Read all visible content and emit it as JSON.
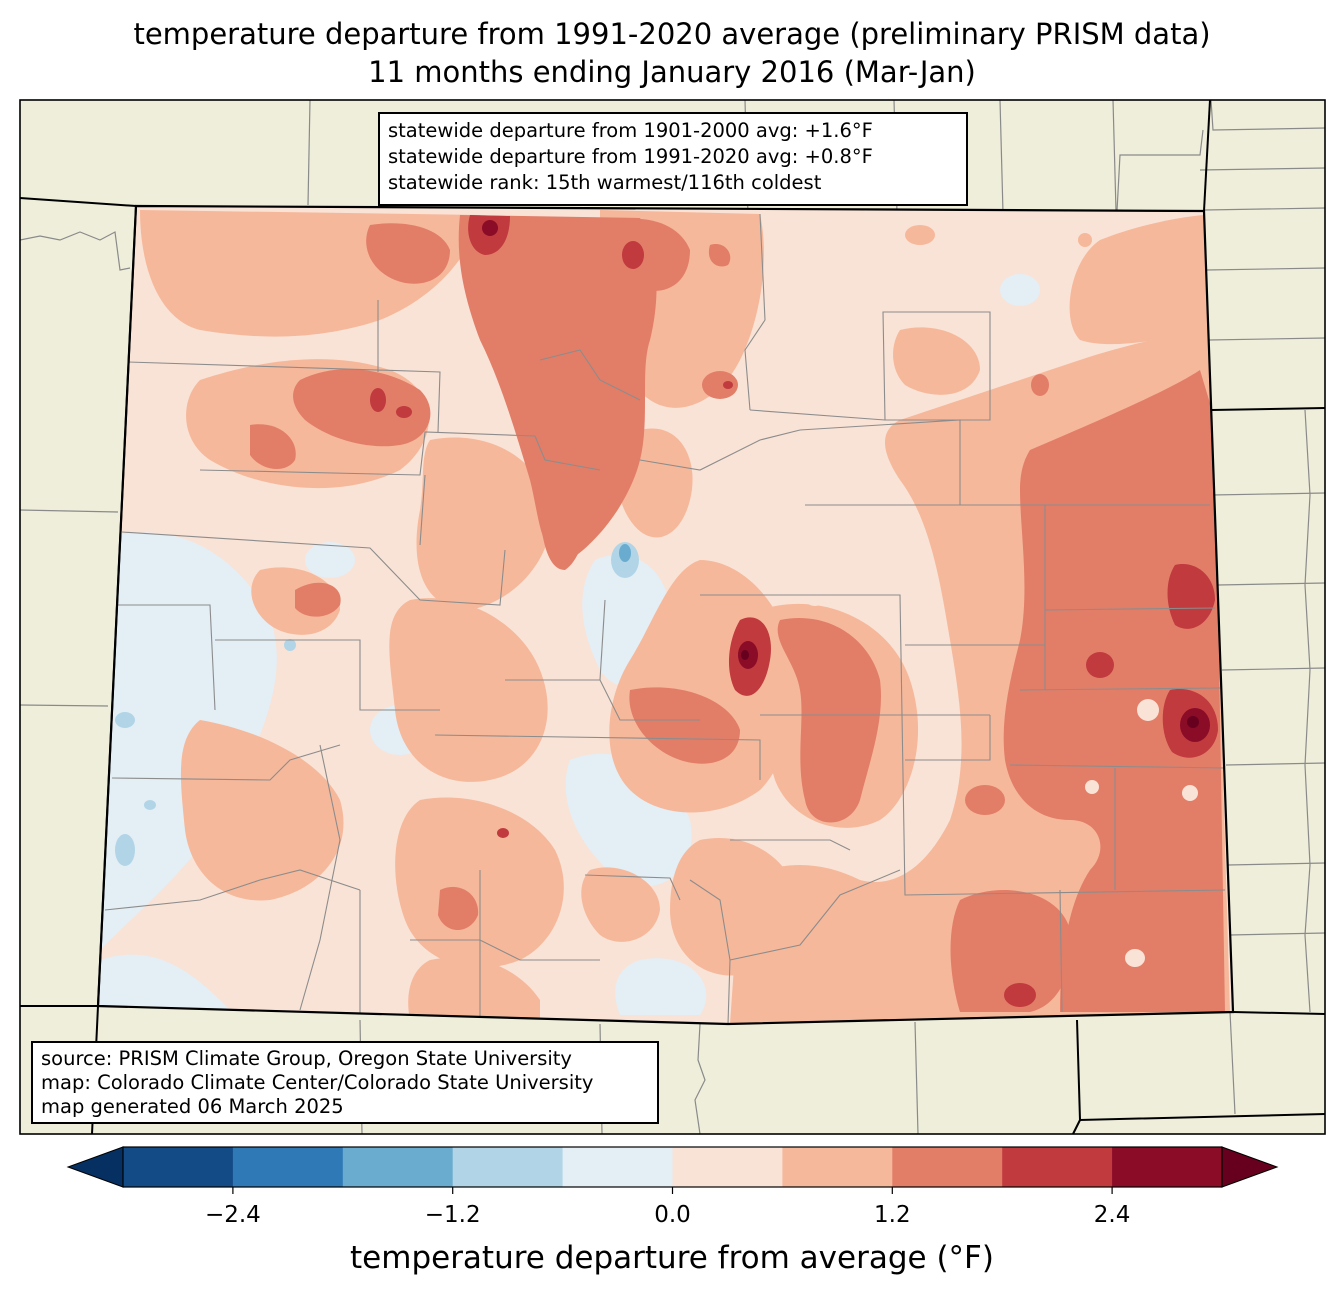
{
  "title": {
    "line1": "temperature departure from 1991-2020 average (preliminary PRISM data)",
    "line2": "11 months ending January 2016 (Mar-Jan)"
  },
  "stats": {
    "line1": "statewide departure from 1901-2000 avg: +1.6°F",
    "line2": "statewide departure from 1991-2020 avg: +0.8°F",
    "line3": "statewide rank: 15th warmest/116th coldest"
  },
  "source": {
    "line1": "source: PRISM Climate Group, Oregon State University",
    "line2": "map: Colorado Climate Center/Colorado State University",
    "line3": "map generated 06 March 2025"
  },
  "colorbar": {
    "label": "temperature departure from average (°F)",
    "ticks": [
      {
        "value": -2.4,
        "text": "−2.4"
      },
      {
        "value": -1.2,
        "text": "−1.2"
      },
      {
        "value": 0.0,
        "text": "0.0"
      },
      {
        "value": 1.2,
        "text": "1.2"
      },
      {
        "value": 2.4,
        "text": "2.4"
      }
    ],
    "bins": [
      {
        "from": -3.0,
        "to": -2.4,
        "color": "#134b87"
      },
      {
        "from": -2.4,
        "to": -1.8,
        "color": "#1f4f8d"
      },
      {
        "from": -1.8,
        "to": -1.2,
        "color": "#327fb9"
      },
      {
        "from": -1.2,
        "to": -0.6,
        "color": "#6aacd0"
      },
      {
        "from": -0.6,
        "to": 0.0,
        "color": "#b1d5e7"
      },
      {
        "from": 0.0,
        "to": 0.6,
        "color": "#e4eef5"
      },
      {
        "from": 0.6,
        "to": 1.2,
        "color": "#f9e3d6"
      },
      {
        "from": 1.2,
        "to": 1.8,
        "color": "#f6b89b"
      },
      {
        "from": 1.8,
        "to": 2.4,
        "color": "#e27e68"
      },
      {
        "from": 2.4,
        "to": 3.0,
        "color": "#c03a3e"
      }
    ],
    "under_color": "#053061",
    "over_color": "#67001f",
    "extra_color": "#8a0c27"
  },
  "colors": {
    "land": "#efeedb",
    "base": "#f9e3d6"
  }
}
